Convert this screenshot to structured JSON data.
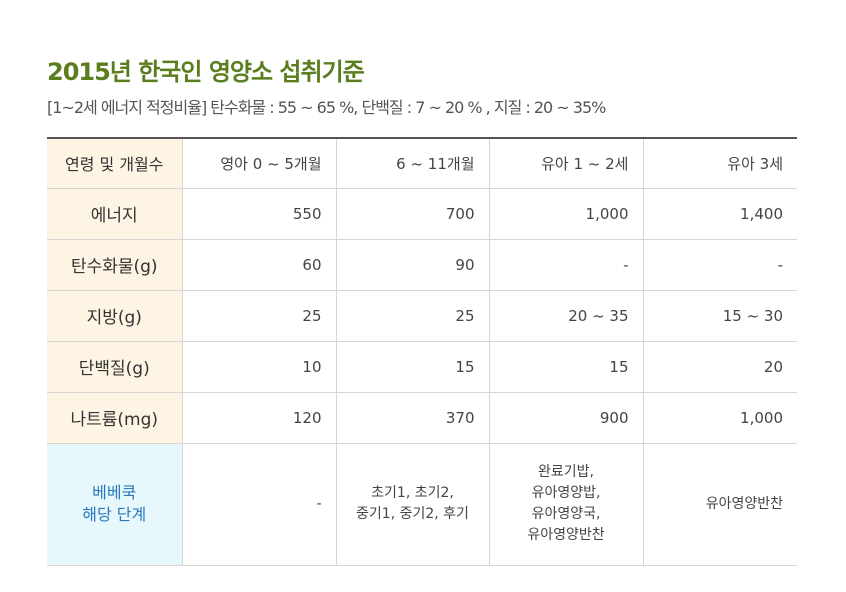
{
  "title": "2015년 한국인 영양소 섭취기준",
  "subtitle": "[1~2세 에너지 적정비율] 탄수화물 : 55 ~ 65 %, 단백질 : 7 ~ 20 % , 지질 : 20 ~ 35%",
  "table": {
    "header": [
      "연령 및 개월수",
      "영아 0 ~ 5개월",
      "6 ~ 11개월",
      "유아 1 ~ 2세",
      "유아 3세"
    ],
    "rows": [
      {
        "label": "에너지",
        "values": [
          "550",
          "700",
          "1,000",
          "1,400"
        ]
      },
      {
        "label": "탄수화물(g)",
        "values": [
          "60",
          "90",
          "-",
          "-"
        ]
      },
      {
        "label": "지방(g)",
        "values": [
          "25",
          "25",
          "20 ~ 35",
          "15 ~ 30"
        ]
      },
      {
        "label": "단백질(g)",
        "values": [
          "10",
          "15",
          "15",
          "20"
        ]
      },
      {
        "label": "나트륨(mg)",
        "values": [
          "120",
          "370",
          "900",
          "1,000"
        ]
      }
    ],
    "bebecook": {
      "label_lines": [
        "베베쿡",
        "해당 단계"
      ],
      "infant_0_5": "-",
      "infant_6_11_lines": [
        "초기1, 초기2,",
        "중기1, 중기2, 후기"
      ],
      "toddler_1_2_lines": [
        "완료기밥,",
        "유아영양밥,",
        "유아영양국,",
        "유아영양반찬"
      ],
      "toddler_3": "유아영양반찬"
    }
  },
  "colors": {
    "title": "#5a7d1e",
    "row_header_bg": "#fdf4e4",
    "bebecook_header_bg": "#e6f8fc",
    "bebecook_text": "#2b78bf"
  }
}
